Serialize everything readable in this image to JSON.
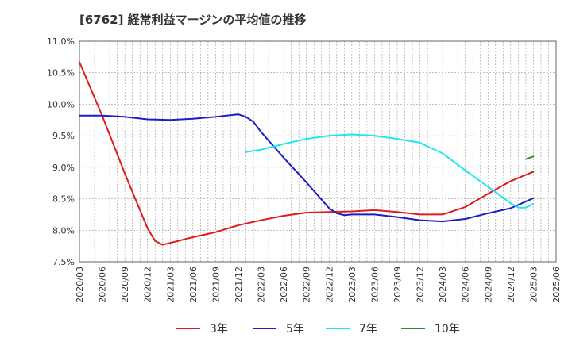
{
  "chart_data": {
    "type": "line",
    "title": "[6762]  経常利益マージンの平均値の推移",
    "xlabel": "",
    "ylabel": "",
    "x_ticks": [
      "2020/03",
      "2020/06",
      "2020/09",
      "2020/12",
      "2021/03",
      "2021/06",
      "2021/09",
      "2021/12",
      "2022/03",
      "2022/06",
      "2022/09",
      "2022/12",
      "2023/03",
      "2023/06",
      "2023/09",
      "2023/12",
      "2024/03",
      "2024/06",
      "2024/09",
      "2024/12",
      "2025/03",
      "2025/06"
    ],
    "y_ticks": [
      "7.5%",
      "8.0%",
      "8.5%",
      "9.0%",
      "9.5%",
      "10.0%",
      "10.5%",
      "11.0%"
    ],
    "ylim": [
      7.5,
      11.0
    ],
    "grid": true,
    "legend_position": "bottom",
    "series": [
      {
        "name": "3年",
        "color": "#dd1c1c",
        "points": [
          [
            "2020/03",
            10.67
          ],
          [
            "2020/06",
            9.82
          ],
          [
            "2020/09",
            8.9
          ],
          [
            "2020/12",
            8.03
          ],
          [
            "2021/01",
            7.83
          ],
          [
            "2021/02",
            7.77
          ],
          [
            "2021/03",
            7.8
          ],
          [
            "2021/06",
            7.89
          ],
          [
            "2021/09",
            7.97
          ],
          [
            "2021/12",
            8.08
          ],
          [
            "2022/03",
            8.16
          ],
          [
            "2022/06",
            8.23
          ],
          [
            "2022/09",
            8.28
          ],
          [
            "2022/12",
            8.29
          ],
          [
            "2023/03",
            8.3
          ],
          [
            "2023/06",
            8.32
          ],
          [
            "2023/09",
            8.29
          ],
          [
            "2023/12",
            8.25
          ],
          [
            "2024/03",
            8.25
          ],
          [
            "2024/06",
            8.37
          ],
          [
            "2024/09",
            8.58
          ],
          [
            "2024/12",
            8.78
          ],
          [
            "2025/03",
            8.93
          ]
        ]
      },
      {
        "name": "5年",
        "color": "#1c1cc8",
        "points": [
          [
            "2020/03",
            9.82
          ],
          [
            "2020/06",
            9.82
          ],
          [
            "2020/09",
            9.8
          ],
          [
            "2020/12",
            9.76
          ],
          [
            "2021/03",
            9.75
          ],
          [
            "2021/06",
            9.77
          ],
          [
            "2021/09",
            9.8
          ],
          [
            "2021/12",
            9.84
          ],
          [
            "2022/01",
            9.8
          ],
          [
            "2022/02",
            9.72
          ],
          [
            "2022/03",
            9.56
          ],
          [
            "2022/06",
            9.15
          ],
          [
            "2022/09",
            8.76
          ],
          [
            "2022/12",
            8.35
          ],
          [
            "2023/01",
            8.27
          ],
          [
            "2023/02",
            8.24
          ],
          [
            "2023/03",
            8.25
          ],
          [
            "2023/06",
            8.25
          ],
          [
            "2023/09",
            8.21
          ],
          [
            "2023/12",
            8.16
          ],
          [
            "2024/03",
            8.14
          ],
          [
            "2024/06",
            8.18
          ],
          [
            "2024/09",
            8.27
          ],
          [
            "2024/12",
            8.35
          ],
          [
            "2025/03",
            8.51
          ]
        ]
      },
      {
        "name": "7年",
        "color": "#22e6ee",
        "points": [
          [
            "2022/01",
            9.24
          ],
          [
            "2022/03",
            9.28
          ],
          [
            "2022/06",
            9.37
          ],
          [
            "2022/09",
            9.45
          ],
          [
            "2022/12",
            9.5
          ],
          [
            "2023/03",
            9.52
          ],
          [
            "2023/06",
            9.5
          ],
          [
            "2023/09",
            9.45
          ],
          [
            "2023/12",
            9.39
          ],
          [
            "2024/01",
            9.33
          ],
          [
            "2024/03",
            9.22
          ],
          [
            "2024/06",
            8.95
          ],
          [
            "2024/09",
            8.69
          ],
          [
            "2024/12",
            8.43
          ],
          [
            "2025/01",
            8.36
          ],
          [
            "2025/02",
            8.36
          ],
          [
            "2025/03",
            8.42
          ]
        ]
      },
      {
        "name": "10年",
        "color": "#2e8b3d",
        "points": [
          [
            "2025/02",
            9.13
          ],
          [
            "2025/03",
            9.17
          ]
        ]
      }
    ]
  }
}
